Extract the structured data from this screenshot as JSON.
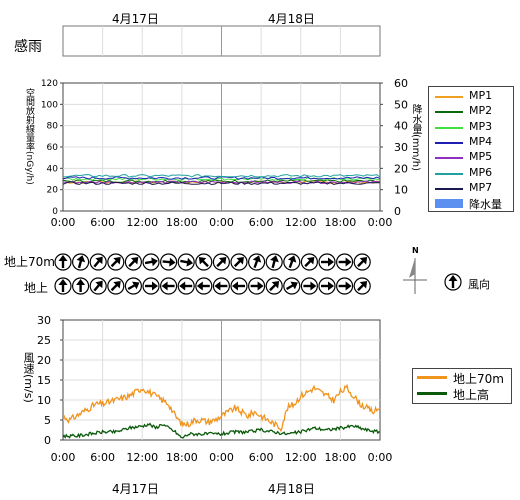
{
  "dates": [
    "4月17日",
    "4月18日"
  ],
  "rain_sense_label": "感雨",
  "time_ticks": [
    "0:00",
    "6:00",
    "12:00",
    "18:00",
    "0:00",
    "6:00",
    "12:00",
    "18:00",
    "0:00"
  ],
  "wind_dir": {
    "legend_label": "風向",
    "north_label": "N",
    "rows": [
      {
        "label": "地上70m",
        "angles": [
          0,
          15,
          40,
          45,
          45,
          80,
          95,
          100,
          315,
          45,
          45,
          20,
          15,
          20,
          45,
          90,
          90,
          45
        ]
      },
      {
        "label": "地上",
        "angles": [
          0,
          0,
          40,
          45,
          60,
          90,
          270,
          270,
          270,
          270,
          270,
          90,
          45,
          60,
          90,
          90,
          90,
          45
        ]
      }
    ]
  },
  "chart_data": [
    {
      "type": "line",
      "ylabel": "空間放射線量率(nGy/h)",
      "y2label": "降水量(mm/h)",
      "ylim": [
        0,
        120
      ],
      "y2lim": [
        0,
        60
      ],
      "yticks": [
        "0",
        "20",
        "40",
        "60",
        "80",
        "100",
        "120"
      ],
      "y2ticks": [
        "0",
        "10",
        "20",
        "30",
        "40",
        "50",
        "60"
      ],
      "x_hours": [
        0,
        48
      ],
      "grid": true,
      "legend_position": "right",
      "series": [
        {
          "name": "MP1",
          "color": "#f0a020",
          "level": 27
        },
        {
          "name": "MP2",
          "color": "#0a6a0a",
          "level": 28
        },
        {
          "name": "MP3",
          "color": "#40e040",
          "level": 30
        },
        {
          "name": "MP4",
          "color": "#1e1eb4",
          "level": 31
        },
        {
          "name": "MP5",
          "color": "#9030c0",
          "level": 27
        },
        {
          "name": "MP6",
          "color": "#20a0a0",
          "level": 33
        },
        {
          "name": "MP7",
          "color": "#1a1a50",
          "level": 26
        }
      ],
      "rain": {
        "name": "降水量",
        "color": "#5b8ff0",
        "values": []
      }
    },
    {
      "type": "line",
      "ylabel": "風速(m/s)",
      "ylim": [
        0,
        30
      ],
      "yticks": [
        "0",
        "5",
        "10",
        "15",
        "20",
        "25",
        "30"
      ],
      "x_hours": [
        0,
        48
      ],
      "grid": true,
      "legend_position": "top-right",
      "series": [
        {
          "name": "地上70m",
          "color": "#f0941e",
          "hours": [
            0,
            1,
            2,
            3,
            4,
            5,
            6,
            7,
            8,
            9,
            10,
            11,
            12,
            13,
            14,
            15,
            16,
            17,
            18,
            19,
            20,
            21,
            22,
            23,
            24,
            25,
            26,
            27,
            28,
            29,
            30,
            31,
            32,
            33,
            34,
            35,
            36,
            37,
            38,
            39,
            40,
            41,
            42,
            43,
            44,
            45,
            46,
            47,
            48
          ],
          "values": [
            6,
            5,
            6,
            7,
            8,
            9,
            9,
            9.5,
            10,
            10.5,
            11,
            12,
            13,
            12,
            11,
            10,
            9,
            6,
            4,
            4,
            5,
            5,
            4.5,
            5,
            6,
            7,
            8,
            7,
            6,
            7,
            6,
            5,
            4,
            3,
            8,
            9,
            11,
            12,
            13,
            12,
            11,
            10,
            12,
            13,
            11,
            9,
            8,
            7,
            8
          ]
        },
        {
          "name": "地上高",
          "color": "#0b5a0b",
          "hours": [
            0,
            2,
            4,
            6,
            8,
            10,
            12,
            13,
            14,
            15,
            16,
            17,
            18,
            19,
            20,
            22,
            24,
            26,
            28,
            30,
            32,
            34,
            36,
            38,
            40,
            42,
            44,
            46,
            48
          ],
          "values": [
            1,
            1,
            1.5,
            2,
            2,
            3,
            3.5,
            4,
            3,
            4,
            3,
            2,
            0.5,
            1.5,
            1.5,
            1.5,
            1.5,
            2,
            2,
            2.5,
            2,
            1.5,
            2,
            3,
            2.5,
            3,
            3.5,
            2.5,
            2
          ]
        }
      ]
    }
  ]
}
